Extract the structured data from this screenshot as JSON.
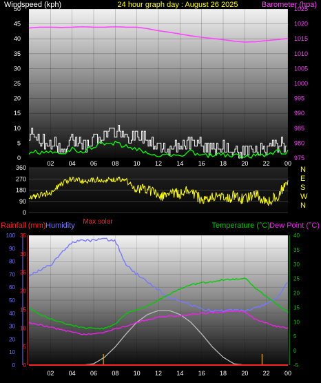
{
  "header": {
    "left_label": "Windspeed (kph)",
    "center_title": "24 hour graph day : August 26 2025",
    "right_label": "Barometer (hpa)"
  },
  "labels": {
    "max_solar": "Max solar",
    "rainfall": "Rainfall (mm)",
    "humidity": "Humidity",
    "temperature": "Temperature (°C)",
    "dew_point": "Dew Point (°C)"
  },
  "colors": {
    "background": "#000000",
    "windspeed_label": "#ffffff",
    "title": "#ffff00",
    "barometer": "#ff44ff",
    "wind_gust": "#ffffff",
    "wind_avg": "#00ff00",
    "wind_direction": "#ffff00",
    "rainfall": "#ff2222",
    "humidity": "#7777ff",
    "temperature": "#00cc00",
    "dew_point": "#ee22ee",
    "solar": "#bbbbbb",
    "max_solar": "#ff2222"
  },
  "chart_data": [
    {
      "type": "line",
      "title": "24 hour graph day : August 26 2025",
      "x_ticks": [
        "02",
        "04",
        "06",
        "08",
        "10",
        "12",
        "14",
        "16",
        "18",
        "20",
        "22",
        "00"
      ],
      "left_axis": {
        "label": "Windspeed (kph)",
        "range": [
          0,
          50
        ],
        "ticks": [
          "0",
          "5",
          "10",
          "15",
          "20",
          "25",
          "30",
          "35",
          "40",
          "45",
          "50"
        ]
      },
      "right_axis": {
        "label": "Barometer (hpa)",
        "range": [
          975,
          1025
        ],
        "ticks": [
          "975",
          "980",
          "985",
          "990",
          "995",
          "1000",
          "1005",
          "1010",
          "1015",
          "1020",
          "1025"
        ]
      },
      "series": [
        {
          "name": "Barometer (hpa)",
          "axis": "right",
          "x": [
            0,
            1,
            2,
            3,
            4,
            5,
            6,
            7,
            8,
            9,
            10,
            11,
            12,
            13,
            14,
            15,
            16,
            17,
            18,
            19,
            20,
            21,
            22,
            23,
            24
          ],
          "values": [
            1018.6,
            1018.9,
            1018.9,
            1018.8,
            1018.9,
            1019.0,
            1018.9,
            1018.9,
            1019.0,
            1018.9,
            1018.9,
            1018.4,
            1017.7,
            1017.2,
            1016.6,
            1016.0,
            1015.5,
            1015.1,
            1014.7,
            1014.2,
            1013.9,
            1014.0,
            1014.4,
            1014.7,
            1015.1
          ]
        },
        {
          "name": "Wind gust",
          "axis": "left",
          "x": [
            0,
            1,
            2,
            3,
            4,
            5,
            6,
            7,
            8,
            9,
            10,
            11,
            12,
            13,
            14,
            15,
            16,
            17,
            18,
            19,
            20,
            21,
            22,
            23,
            24
          ],
          "values": [
            8,
            6,
            5,
            3,
            7,
            4,
            6,
            8,
            9,
            7,
            8,
            6,
            4,
            3,
            4,
            5,
            4,
            3,
            4,
            3,
            2,
            3,
            4,
            4,
            5
          ]
        },
        {
          "name": "Wind average",
          "axis": "left",
          "x": [
            0,
            1,
            2,
            3,
            4,
            5,
            6,
            7,
            8,
            9,
            10,
            11,
            12,
            13,
            14,
            15,
            16,
            17,
            18,
            19,
            20,
            21,
            22,
            23,
            24
          ],
          "values": [
            2,
            2,
            2,
            1,
            3,
            2,
            4,
            5,
            5,
            4,
            3,
            2,
            1,
            1,
            1,
            2,
            1,
            1,
            1,
            1,
            0,
            1,
            1,
            2,
            2
          ]
        }
      ],
      "ygrid": true
    },
    {
      "type": "line",
      "x_ticks": [
        "02",
        "04",
        "06",
        "08",
        "10",
        "12",
        "14",
        "16",
        "18",
        "20",
        "22",
        "00"
      ],
      "left_axis": {
        "range": [
          0,
          360
        ],
        "ticks": [
          "0",
          "90",
          "180",
          "270",
          "360"
        ]
      },
      "right_axis": {
        "ticks": [
          "N",
          "W",
          "S",
          "E",
          "N"
        ]
      },
      "series": [
        {
          "name": "Wind direction",
          "x": [
            0,
            1,
            2,
            3,
            4,
            5,
            6,
            7,
            8,
            9,
            10,
            11,
            12,
            13,
            14,
            15,
            16,
            17,
            18,
            19,
            20,
            21,
            22,
            23,
            24
          ],
          "values": [
            120,
            140,
            160,
            230,
            270,
            250,
            260,
            265,
            265,
            260,
            170,
            200,
            120,
            170,
            150,
            180,
            100,
            140,
            110,
            130,
            100,
            150,
            80,
            130,
            250
          ]
        }
      ],
      "ygrid": true
    },
    {
      "type": "line",
      "x_ticks": [
        "02",
        "04",
        "06",
        "08",
        "10",
        "12",
        "14",
        "16",
        "18",
        "20",
        "22",
        "00"
      ],
      "axes": {
        "humidity": {
          "label": "Humidity",
          "range": [
            0,
            100
          ],
          "ticks": [
            "0",
            "10",
            "20",
            "30",
            "40",
            "50",
            "60",
            "70",
            "80",
            "90",
            "100"
          ]
        },
        "rainfall": {
          "label": "Rainfall (mm)",
          "range": [
            0,
            35
          ],
          "ticks": [
            "0",
            "5",
            "10",
            "15",
            "20",
            "25",
            "30",
            "35"
          ]
        },
        "temperature": {
          "label": "Temperature (°C)",
          "range": [
            -5,
            40
          ],
          "ticks": [
            "-5",
            "0",
            "5",
            "10",
            "15",
            "20",
            "25",
            "30",
            "35",
            "40"
          ]
        }
      },
      "series": [
        {
          "name": "Humidity",
          "axis": "humidity",
          "x": [
            0,
            1,
            2,
            3,
            4,
            5,
            6,
            7,
            8,
            9,
            10,
            11,
            12,
            13,
            14,
            15,
            16,
            17,
            18,
            19,
            20,
            21,
            22,
            23,
            24
          ],
          "values": [
            69,
            73,
            77,
            86,
            95,
            96,
            96,
            97,
            96,
            77,
            70,
            64,
            58,
            52,
            50,
            46,
            43,
            42,
            42,
            42,
            42,
            44,
            47,
            52,
            64
          ]
        },
        {
          "name": "Temperature (°C)",
          "axis": "temperature",
          "x": [
            0,
            1,
            2,
            3,
            4,
            5,
            6,
            7,
            8,
            9,
            10,
            11,
            12,
            13,
            14,
            15,
            16,
            17,
            18,
            19,
            20,
            21,
            22,
            23,
            24
          ],
          "values": [
            14.8,
            12.6,
            11.0,
            9.8,
            8.8,
            8.0,
            7.6,
            7.7,
            9.0,
            12.8,
            14.2,
            15.5,
            17.5,
            19.5,
            21.5,
            22.8,
            23.5,
            24.0,
            24.6,
            24.8,
            25.2,
            21.5,
            18.8,
            16.2,
            13.2
          ]
        },
        {
          "name": "Dew Point (°C)",
          "axis": "temperature",
          "x": [
            0,
            1,
            2,
            3,
            4,
            5,
            6,
            7,
            8,
            9,
            10,
            11,
            12,
            13,
            14,
            15,
            16,
            17,
            18,
            19,
            20,
            21,
            22,
            23,
            24
          ],
          "values": [
            9.5,
            9.0,
            8.2,
            7.2,
            6.4,
            5.8,
            5.7,
            6.2,
            7.5,
            8.5,
            9.8,
            10.8,
            11.5,
            11.9,
            12.2,
            12.6,
            12.9,
            13.2,
            13.5,
            13.8,
            13.4,
            10.8,
            9.6,
            8.4,
            7.8
          ]
        },
        {
          "name": "Solar",
          "axis": "humidity",
          "x": [
            0,
            5,
            6,
            7,
            8,
            9,
            10,
            11,
            12,
            13,
            14,
            15,
            16,
            17,
            18,
            19,
            20,
            21,
            24
          ],
          "values": [
            0,
            0,
            1,
            6,
            14,
            24,
            33,
            39,
            42,
            42,
            39,
            33,
            24,
            14,
            6,
            1,
            0,
            0,
            0
          ]
        },
        {
          "name": "Rainfall (mm)",
          "axis": "rainfall",
          "x": [
            0,
            24
          ],
          "values": [
            0,
            0
          ]
        }
      ],
      "ygrid": true
    }
  ]
}
